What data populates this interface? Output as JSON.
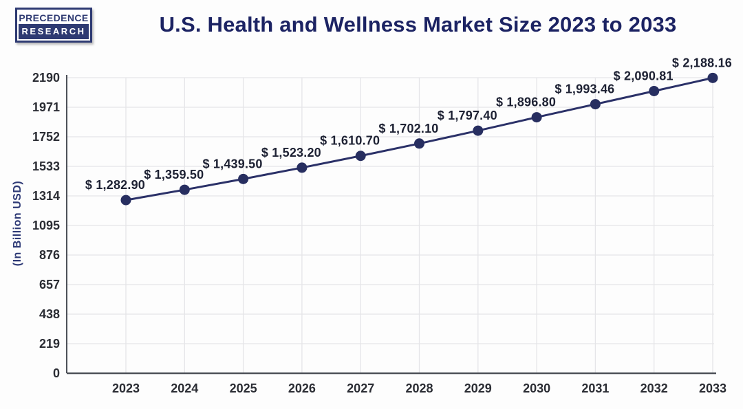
{
  "header": {
    "logo": {
      "line1": "PRECEDENCE",
      "line2": "RESEARCH"
    },
    "title": "U.S. Health and Wellness Market Size 2023 to 2033"
  },
  "chart_data": {
    "type": "line",
    "title": "U.S. Health and Wellness Market Size 2023 to 2033",
    "categories": [
      "2023",
      "2024",
      "2025",
      "2026",
      "2027",
      "2028",
      "2029",
      "2030",
      "2031",
      "2032",
      "2033"
    ],
    "values": [
      1282.9,
      1359.5,
      1439.5,
      1523.2,
      1610.7,
      1702.1,
      1797.4,
      1896.8,
      1993.46,
      2090.81,
      2188.16
    ],
    "data_labels": [
      "$ 1,282.90",
      "$ 1,359.50",
      "$ 1,439.50",
      "$ 1,523.20",
      "$ 1,610.70",
      "$ 1,702.10",
      "$ 1,797.40",
      "$ 1,896.80",
      "$ 1,993.46",
      "$ 2,090.81",
      "$ 2,188.16"
    ],
    "xlabel": "",
    "ylabel": "(In Billion USD)",
    "ylim": [
      0,
      2190
    ],
    "yticks": [
      0,
      219,
      438,
      657,
      876,
      1095,
      1314,
      1533,
      1752,
      1971,
      2190
    ],
    "grid": true,
    "legend_position": "none",
    "colors": {
      "line": "#2b3168",
      "marker": "#272e60",
      "data_label": "#1d2133",
      "tick_label": "#2b2d34",
      "axis": "#4d5158",
      "grid": "#e5e5e8",
      "title": "#1c2363",
      "y_axis_title": "#2e3a76",
      "background": "#fdfdfd"
    }
  }
}
